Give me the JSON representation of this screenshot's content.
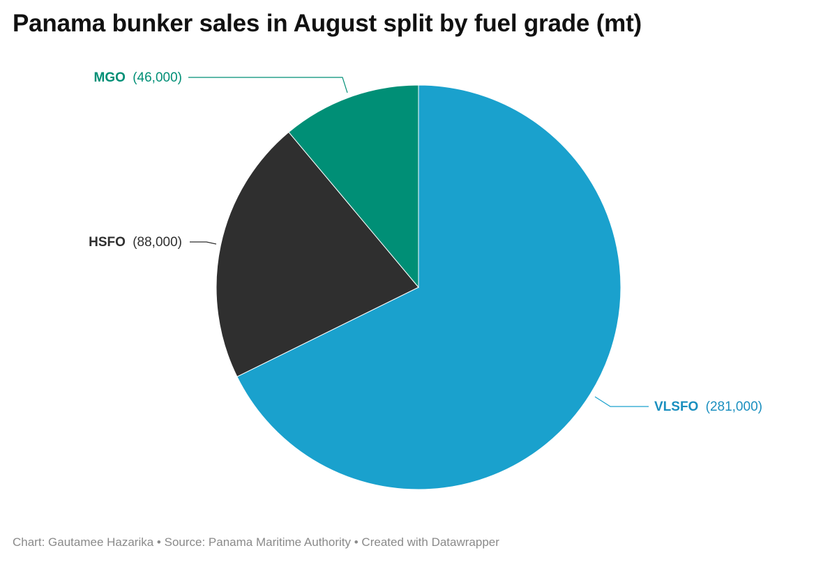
{
  "title": "Panama bunker sales in August split by fuel grade (mt)",
  "chart_data": {
    "type": "pie",
    "title": "Panama bunker sales in August split by fuel grade (mt)",
    "slices": [
      {
        "name": "VLSFO",
        "value": 281000,
        "value_label": "(281,000)",
        "color": "#1aa1cd"
      },
      {
        "name": "HSFO",
        "value": 88000,
        "value_label": "(88,000)",
        "color": "#2f2f2f"
      },
      {
        "name": "MGO",
        "value": 46000,
        "value_label": "(46,000)",
        "color": "#008f76"
      }
    ],
    "start_angle": "12 o'clock",
    "direction": "clockwise"
  },
  "footer": {
    "credit": "Chart: Gautamee Hazarika",
    "source": "Source: Panama Maritime Authority",
    "tool": "Created with Datawrapper",
    "separator": " • "
  }
}
